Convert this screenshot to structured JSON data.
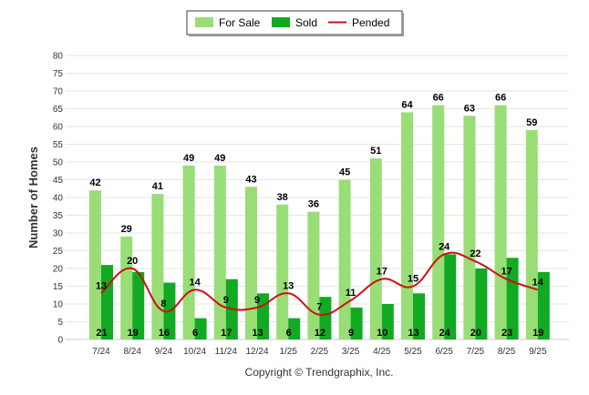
{
  "chart_data": {
    "type": "bar",
    "title": "",
    "xlabel": "",
    "ylabel": "Number of Homes",
    "ylim": [
      0,
      80
    ],
    "yticks": [
      0,
      5,
      10,
      15,
      20,
      25,
      30,
      35,
      40,
      45,
      50,
      55,
      60,
      65,
      70,
      75,
      80
    ],
    "categories": [
      "7/24",
      "8/24",
      "9/24",
      "10/24",
      "11/24",
      "12/24",
      "1/25",
      "2/25",
      "3/25",
      "4/25",
      "5/25",
      "6/25",
      "7/25",
      "8/25",
      "9/25"
    ],
    "series": [
      {
        "name": "For Sale",
        "kind": "bar",
        "color": "#99dd77",
        "values": [
          42,
          29,
          41,
          49,
          49,
          43,
          38,
          36,
          45,
          51,
          64,
          66,
          63,
          66,
          59
        ]
      },
      {
        "name": "Sold",
        "kind": "bar",
        "color": "#11aa22",
        "values": [
          21,
          19,
          16,
          6,
          17,
          13,
          6,
          12,
          9,
          10,
          13,
          24,
          20,
          23,
          19
        ]
      },
      {
        "name": "Pended",
        "kind": "line",
        "color": "#cc1111",
        "values": [
          13,
          20,
          8,
          14,
          9,
          9,
          13,
          7,
          11,
          17,
          15,
          24,
          22,
          17,
          14
        ]
      }
    ],
    "legend_position": "top-center",
    "grid": true
  },
  "footer": {
    "copyright": "Copyright © Trendgraphix, Inc."
  }
}
